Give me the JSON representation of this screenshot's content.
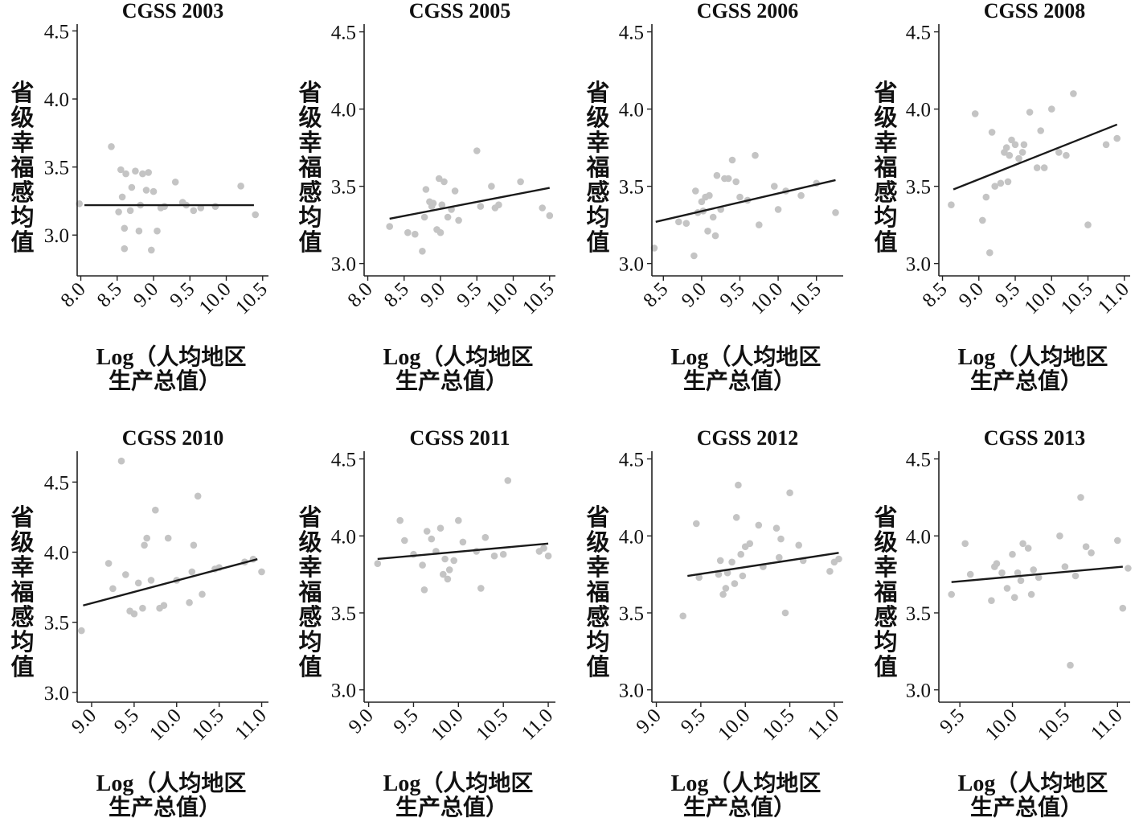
{
  "colors": {
    "point": "#c4c4c4",
    "line": "#1a1a1a",
    "axis": "#222222"
  },
  "chart_data": [
    {
      "type": "scatter",
      "title": "CGSS 2003",
      "xlabel": [
        "Log（人均地区",
        "生产总值）"
      ],
      "ylabel": "省级幸福感均值",
      "xlim": [
        7.95,
        10.58
      ],
      "ylim": [
        2.7,
        4.55
      ],
      "xticks": [
        8.0,
        8.5,
        9.0,
        9.5,
        10.0,
        10.5
      ],
      "xtick_labels": [
        "8.0",
        "8.5",
        "9.0",
        "9.5",
        "10.0",
        "10.5"
      ],
      "yticks": [
        3.0,
        3.5,
        4.0,
        4.5
      ],
      "ytick_labels": [
        "3.0",
        "3.5",
        "4.0",
        "4.5"
      ],
      "fit": [
        [
          8.05,
          3.22
        ],
        [
          10.38,
          3.22
        ]
      ],
      "points": [
        [
          7.98,
          3.23
        ],
        [
          8.42,
          3.65
        ],
        [
          8.52,
          3.17
        ],
        [
          8.55,
          3.48
        ],
        [
          8.57,
          3.28
        ],
        [
          8.6,
          3.05
        ],
        [
          8.6,
          2.9
        ],
        [
          8.62,
          3.45
        ],
        [
          8.68,
          3.18
        ],
        [
          8.7,
          3.35
        ],
        [
          8.75,
          3.47
        ],
        [
          8.8,
          3.03
        ],
        [
          8.82,
          3.22
        ],
        [
          8.85,
          3.45
        ],
        [
          8.9,
          3.33
        ],
        [
          8.93,
          3.46
        ],
        [
          8.97,
          2.89
        ],
        [
          9.0,
          3.32
        ],
        [
          9.05,
          3.03
        ],
        [
          9.1,
          3.2
        ],
        [
          9.15,
          3.21
        ],
        [
          9.3,
          3.39
        ],
        [
          9.4,
          3.24
        ],
        [
          9.45,
          3.22
        ],
        [
          9.55,
          3.18
        ],
        [
          9.65,
          3.2
        ],
        [
          9.85,
          3.21
        ],
        [
          10.2,
          3.36
        ],
        [
          10.4,
          3.15
        ]
      ]
    },
    {
      "type": "scatter",
      "title": "CGSS 2005",
      "xlabel": [
        "Log（人均地区",
        "生产总值）"
      ],
      "ylabel": "省级幸福感均值",
      "xlim": [
        7.95,
        10.58
      ],
      "ylim": [
        2.92,
        4.55
      ],
      "xticks": [
        8.0,
        8.5,
        9.0,
        9.5,
        10.0,
        10.5
      ],
      "xtick_labels": [
        "8.0",
        "8.5",
        "9.0",
        "9.5",
        "10.0",
        "10.5"
      ],
      "yticks": [
        3.0,
        3.5,
        4.0,
        4.5
      ],
      "ytick_labels": [
        "3.0",
        "3.5",
        "4.0",
        "4.5"
      ],
      "fit": [
        [
          8.3,
          3.29
        ],
        [
          10.5,
          3.49
        ]
      ],
      "points": [
        [
          8.3,
          3.24
        ],
        [
          8.55,
          3.2
        ],
        [
          8.65,
          3.19
        ],
        [
          8.75,
          3.08
        ],
        [
          8.78,
          3.3
        ],
        [
          8.8,
          3.48
        ],
        [
          8.85,
          3.4
        ],
        [
          8.88,
          3.37
        ],
        [
          8.9,
          3.39
        ],
        [
          8.95,
          3.22
        ],
        [
          8.98,
          3.55
        ],
        [
          9.0,
          3.2
        ],
        [
          9.02,
          3.38
        ],
        [
          9.05,
          3.53
        ],
        [
          9.1,
          3.3
        ],
        [
          9.15,
          3.35
        ],
        [
          9.2,
          3.47
        ],
        [
          9.25,
          3.28
        ],
        [
          9.5,
          3.73
        ],
        [
          9.55,
          3.37
        ],
        [
          9.7,
          3.5
        ],
        [
          9.75,
          3.36
        ],
        [
          9.8,
          3.38
        ],
        [
          10.1,
          3.53
        ],
        [
          10.4,
          3.36
        ],
        [
          10.5,
          3.31
        ]
      ]
    },
    {
      "type": "scatter",
      "title": "CGSS 2006",
      "xlabel": [
        "Log（人均地区",
        "生产总值）"
      ],
      "ylabel": "省级幸福感均值",
      "xlim": [
        8.35,
        10.85
      ],
      "ylim": [
        2.92,
        4.55
      ],
      "xticks": [
        8.5,
        9.0,
        9.5,
        10.0,
        10.5
      ],
      "xtick_labels": [
        "8.5",
        "9.0",
        "9.5",
        "10.0",
        "10.5"
      ],
      "yticks": [
        3.0,
        3.5,
        4.0,
        4.5
      ],
      "ytick_labels": [
        "3.0",
        "3.5",
        "4.0",
        "4.5"
      ],
      "fit": [
        [
          8.4,
          3.27
        ],
        [
          10.75,
          3.54
        ]
      ],
      "points": [
        [
          8.38,
          3.1
        ],
        [
          8.7,
          3.27
        ],
        [
          8.8,
          3.26
        ],
        [
          8.9,
          3.05
        ],
        [
          8.92,
          3.47
        ],
        [
          8.95,
          3.33
        ],
        [
          9.0,
          3.4
        ],
        [
          9.02,
          3.34
        ],
        [
          9.05,
          3.43
        ],
        [
          9.08,
          3.21
        ],
        [
          9.1,
          3.44
        ],
        [
          9.15,
          3.3
        ],
        [
          9.18,
          3.18
        ],
        [
          9.2,
          3.57
        ],
        [
          9.25,
          3.35
        ],
        [
          9.3,
          3.55
        ],
        [
          9.35,
          3.55
        ],
        [
          9.4,
          3.67
        ],
        [
          9.45,
          3.53
        ],
        [
          9.5,
          3.43
        ],
        [
          9.6,
          3.41
        ],
        [
          9.7,
          3.7
        ],
        [
          9.75,
          3.25
        ],
        [
          9.95,
          3.5
        ],
        [
          10.0,
          3.35
        ],
        [
          10.1,
          3.47
        ],
        [
          10.3,
          3.44
        ],
        [
          10.5,
          3.52
        ],
        [
          10.75,
          3.33
        ]
      ]
    },
    {
      "type": "scatter",
      "title": "CGSS 2008",
      "xlabel": [
        "Log（人均地区",
        "生产总值）"
      ],
      "ylabel": "省级幸福感均值",
      "xlim": [
        8.45,
        11.08
      ],
      "ylim": [
        2.92,
        4.55
      ],
      "xticks": [
        8.5,
        9.0,
        9.5,
        10.0,
        10.5,
        11.0
      ],
      "xtick_labels": [
        "8.5",
        "9.0",
        "9.5",
        "10.0",
        "10.5",
        "11.0"
      ],
      "yticks": [
        3.0,
        3.5,
        4.0,
        4.5
      ],
      "ytick_labels": [
        "3.0",
        "3.5",
        "4.0",
        "4.5"
      ],
      "fit": [
        [
          8.65,
          3.48
        ],
        [
          10.9,
          3.9
        ]
      ],
      "points": [
        [
          8.62,
          3.38
        ],
        [
          8.95,
          3.97
        ],
        [
          9.05,
          3.28
        ],
        [
          9.1,
          3.43
        ],
        [
          9.15,
          3.07
        ],
        [
          9.18,
          3.85
        ],
        [
          9.22,
          3.5
        ],
        [
          9.3,
          3.52
        ],
        [
          9.35,
          3.72
        ],
        [
          9.38,
          3.75
        ],
        [
          9.4,
          3.53
        ],
        [
          9.42,
          3.7
        ],
        [
          9.45,
          3.8
        ],
        [
          9.5,
          3.77
        ],
        [
          9.55,
          3.68
        ],
        [
          9.6,
          3.72
        ],
        [
          9.62,
          3.77
        ],
        [
          9.7,
          3.98
        ],
        [
          9.8,
          3.62
        ],
        [
          9.85,
          3.86
        ],
        [
          9.9,
          3.62
        ],
        [
          10.0,
          4.0
        ],
        [
          10.1,
          3.72
        ],
        [
          10.2,
          3.7
        ],
        [
          10.3,
          4.1
        ],
        [
          10.5,
          3.25
        ],
        [
          10.75,
          3.77
        ],
        [
          10.9,
          3.81
        ]
      ]
    },
    {
      "type": "scatter",
      "title": "CGSS 2010",
      "xlabel": [
        "Log（人均地区",
        "生产总值）"
      ],
      "ylabel": "省级幸福感均值",
      "xlim": [
        8.83,
        11.08
      ],
      "ylim": [
        2.93,
        4.72
      ],
      "xticks": [
        9.0,
        9.5,
        10.0,
        10.5,
        11.0
      ],
      "xtick_labels": [
        "9.0",
        "9.5",
        "10.0",
        "10.5",
        "11.0"
      ],
      "yticks": [
        3.0,
        3.5,
        4.0,
        4.5
      ],
      "ytick_labels": [
        "3.0",
        "3.5",
        "4.0",
        "4.5"
      ],
      "fit": [
        [
          8.9,
          3.62
        ],
        [
          10.95,
          3.95
        ]
      ],
      "points": [
        [
          8.88,
          3.44
        ],
        [
          9.2,
          3.92
        ],
        [
          9.25,
          3.74
        ],
        [
          9.35,
          4.65
        ],
        [
          9.4,
          3.84
        ],
        [
          9.45,
          3.58
        ],
        [
          9.5,
          3.56
        ],
        [
          9.55,
          3.78
        ],
        [
          9.6,
          3.6
        ],
        [
          9.62,
          4.05
        ],
        [
          9.65,
          4.1
        ],
        [
          9.7,
          3.8
        ],
        [
          9.75,
          4.3
        ],
        [
          9.8,
          3.6
        ],
        [
          9.85,
          3.62
        ],
        [
          9.9,
          4.1
        ],
        [
          10.0,
          3.8
        ],
        [
          10.15,
          3.64
        ],
        [
          10.18,
          3.86
        ],
        [
          10.2,
          4.05
        ],
        [
          10.25,
          4.4
        ],
        [
          10.3,
          3.7
        ],
        [
          10.45,
          3.88
        ],
        [
          10.5,
          3.89
        ],
        [
          10.8,
          3.93
        ],
        [
          10.9,
          3.95
        ],
        [
          11.0,
          3.86
        ]
      ]
    },
    {
      "type": "scatter",
      "title": "CGSS 2011",
      "xlabel": [
        "Log（人均地区",
        "生产总值）"
      ],
      "ylabel": "省级幸福感均值",
      "xlim": [
        8.95,
        11.08
      ],
      "ylim": [
        2.92,
        4.55
      ],
      "xticks": [
        9.0,
        9.5,
        10.0,
        10.5,
        11.0
      ],
      "xtick_labels": [
        "9.0",
        "9.5",
        "10.0",
        "10.5",
        "11.0"
      ],
      "yticks": [
        3.0,
        3.5,
        4.0,
        4.5
      ],
      "ytick_labels": [
        "3.0",
        "3.5",
        "4.0",
        "4.5"
      ],
      "fit": [
        [
          9.1,
          3.85
        ],
        [
          11.0,
          3.95
        ]
      ],
      "points": [
        [
          9.1,
          3.82
        ],
        [
          9.35,
          4.1
        ],
        [
          9.4,
          3.97
        ],
        [
          9.5,
          3.88
        ],
        [
          9.6,
          3.81
        ],
        [
          9.62,
          3.65
        ],
        [
          9.65,
          4.03
        ],
        [
          9.7,
          3.98
        ],
        [
          9.75,
          3.9
        ],
        [
          9.8,
          4.05
        ],
        [
          9.83,
          3.75
        ],
        [
          9.85,
          3.85
        ],
        [
          9.88,
          3.72
        ],
        [
          9.9,
          3.78
        ],
        [
          9.95,
          3.84
        ],
        [
          10.0,
          4.1
        ],
        [
          10.05,
          3.96
        ],
        [
          10.2,
          3.9
        ],
        [
          10.25,
          3.66
        ],
        [
          10.3,
          3.99
        ],
        [
          10.4,
          3.87
        ],
        [
          10.5,
          3.88
        ],
        [
          10.55,
          4.36
        ],
        [
          10.9,
          3.9
        ],
        [
          10.95,
          3.92
        ],
        [
          11.0,
          3.87
        ]
      ]
    },
    {
      "type": "scatter",
      "title": "CGSS 2012",
      "xlabel": [
        "Log（人均地区",
        "生产总值）"
      ],
      "ylabel": "省级幸福感均值",
      "xlim": [
        8.95,
        11.1
      ],
      "ylim": [
        2.92,
        4.55
      ],
      "xticks": [
        9.0,
        9.5,
        10.0,
        10.5,
        11.0
      ],
      "xtick_labels": [
        "9.0",
        "9.5",
        "10.0",
        "10.5",
        "11.0"
      ],
      "yticks": [
        3.0,
        3.5,
        4.0,
        4.5
      ],
      "ytick_labels": [
        "3.0",
        "3.5",
        "4.0",
        "4.5"
      ],
      "fit": [
        [
          9.35,
          3.74
        ],
        [
          11.05,
          3.89
        ]
      ],
      "points": [
        [
          9.3,
          3.48
        ],
        [
          9.45,
          4.08
        ],
        [
          9.48,
          3.73
        ],
        [
          9.7,
          3.75
        ],
        [
          9.72,
          3.84
        ],
        [
          9.75,
          3.62
        ],
        [
          9.78,
          3.66
        ],
        [
          9.8,
          3.76
        ],
        [
          9.85,
          3.83
        ],
        [
          9.88,
          3.69
        ],
        [
          9.9,
          4.12
        ],
        [
          9.92,
          4.33
        ],
        [
          9.95,
          3.88
        ],
        [
          9.97,
          3.74
        ],
        [
          10.0,
          3.93
        ],
        [
          10.05,
          3.95
        ],
        [
          10.15,
          4.07
        ],
        [
          10.2,
          3.8
        ],
        [
          10.35,
          4.05
        ],
        [
          10.38,
          3.86
        ],
        [
          10.4,
          3.98
        ],
        [
          10.45,
          3.5
        ],
        [
          10.5,
          4.28
        ],
        [
          10.6,
          3.94
        ],
        [
          10.65,
          3.84
        ],
        [
          10.95,
          3.77
        ],
        [
          11.0,
          3.83
        ],
        [
          11.05,
          3.85
        ]
      ]
    },
    {
      "type": "scatter",
      "title": "CGSS 2013",
      "xlabel": [
        "Log（人均地区",
        "生产总值）"
      ],
      "ylabel": "省级幸福感均值",
      "xlim": [
        9.3,
        11.12
      ],
      "ylim": [
        2.92,
        4.55
      ],
      "xticks": [
        9.5,
        10.0,
        10.5,
        11.0
      ],
      "xtick_labels": [
        "9.5",
        "10.0",
        "10.5",
        "11.0"
      ],
      "yticks": [
        3.0,
        3.5,
        4.0,
        4.5
      ],
      "ytick_labels": [
        "3.0",
        "3.5",
        "4.0",
        "4.5"
      ],
      "fit": [
        [
          9.42,
          3.7
        ],
        [
          11.05,
          3.8
        ]
      ],
      "points": [
        [
          9.42,
          3.62
        ],
        [
          9.55,
          3.95
        ],
        [
          9.6,
          3.75
        ],
        [
          9.8,
          3.58
        ],
        [
          9.83,
          3.8
        ],
        [
          9.85,
          3.82
        ],
        [
          9.9,
          3.76
        ],
        [
          9.95,
          3.66
        ],
        [
          10.0,
          3.88
        ],
        [
          10.02,
          3.6
        ],
        [
          10.05,
          3.76
        ],
        [
          10.08,
          3.71
        ],
        [
          10.1,
          3.95
        ],
        [
          10.15,
          3.92
        ],
        [
          10.18,
          3.62
        ],
        [
          10.2,
          3.78
        ],
        [
          10.25,
          3.73
        ],
        [
          10.45,
          4.0
        ],
        [
          10.5,
          3.8
        ],
        [
          10.55,
          3.16
        ],
        [
          10.6,
          3.74
        ],
        [
          10.65,
          4.25
        ],
        [
          10.7,
          3.93
        ],
        [
          10.75,
          3.89
        ],
        [
          11.0,
          3.97
        ],
        [
          11.05,
          3.53
        ],
        [
          11.1,
          3.79
        ]
      ]
    }
  ]
}
